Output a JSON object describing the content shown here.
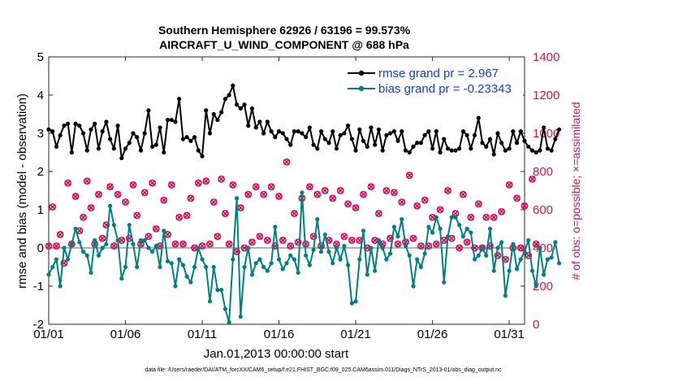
{
  "chart_data": {
    "type": "line",
    "title": "Southern Hemisphere 62926 / 63196 = 99.573%",
    "subtitle": "AIRCRAFT_U_WIND_COMPONENT @ 688 hPa",
    "xlabel": "Jan.01,2013 00:00:00 start",
    "ylabel": "rmse and bias (model - observation)",
    "y2label": "# of obs: o=possible; ×=assimilated",
    "x_ticks": [
      "01/01",
      "01/06",
      "01/11",
      "01/16",
      "01/21",
      "01/26",
      "01/31"
    ],
    "xlim": [
      0,
      124
    ],
    "ylim": [
      -2,
      5
    ],
    "y_ticks": [
      -2,
      -1,
      0,
      1,
      2,
      3,
      4,
      5
    ],
    "y2lim": [
      0,
      1400
    ],
    "y2_ticks": [
      0,
      200,
      400,
      600,
      800,
      1000,
      1200,
      1400
    ],
    "zero_line": true,
    "footnote": "data file: /Users/raeder/DAI/ATM_forcXX/CAM6_setup/f.e21.FHIST_BGC.f09_025.CAM6assim.011/Diags_NTrS_2013-01/obs_diag_output.nc",
    "series": [
      {
        "name": "rmse grand pr = 2.967",
        "color": "#000000",
        "axis": "left",
        "values": [
          3.1,
          3.05,
          2.65,
          2.95,
          3.2,
          3.25,
          2.5,
          3.25,
          3.2,
          3.0,
          2.55,
          3.1,
          3.25,
          2.6,
          3.05,
          3.3,
          2.85,
          2.6,
          3.2,
          2.35,
          2.6,
          2.75,
          3.0,
          2.9,
          2.55,
          3.0,
          3.6,
          2.65,
          2.7,
          3.15,
          2.5,
          3.35,
          3.35,
          3.3,
          3.9,
          2.85,
          2.9,
          2.8,
          2.9,
          2.55,
          2.4,
          3.6,
          3.0,
          3.5,
          3.35,
          3.55,
          3.9,
          4.0,
          4.25,
          3.75,
          3.65,
          3.75,
          3.2,
          3.65,
          3.15,
          3.3,
          3.0,
          3.3,
          3.05,
          2.9,
          3.05,
          3.0,
          2.85,
          2.7,
          3.05,
          3.05,
          3.0,
          2.9,
          3.15,
          2.7,
          2.6,
          3.05,
          2.85,
          2.75,
          3.05,
          2.6,
          2.95,
          3.0,
          3.2,
          2.85,
          2.55,
          3.1,
          2.8,
          2.65,
          3.15,
          2.7,
          3.1,
          2.55,
          2.95,
          3.0,
          3.05,
          2.8,
          3.05,
          2.55,
          2.5,
          2.65,
          2.75,
          2.75,
          2.95,
          3.05,
          2.6,
          3.05,
          2.5,
          2.85,
          2.6,
          2.55,
          2.55,
          2.6,
          3.05,
          2.95,
          2.6,
          2.95,
          3.4,
          2.75,
          2.65,
          2.85,
          2.45,
          3.0,
          2.75,
          2.55,
          2.6,
          3.05,
          2.75,
          3.05,
          2.8,
          2.65,
          2.55,
          2.5,
          2.55,
          3.15,
          2.6,
          2.55,
          2.85,
          3.1
        ]
      },
      {
        "name": "bias grand pr = -0.23343",
        "color": "#008080",
        "axis": "left",
        "values": [
          -0.7,
          -0.5,
          -0.3,
          -1.0,
          0.0,
          -0.3,
          0.1,
          0.5,
          0.15,
          -0.1,
          -0.2,
          -0.65,
          0.2,
          -0.2,
          0.0,
          0.1,
          1.1,
          0.6,
          0.2,
          -0.8,
          -0.5,
          0.6,
          0.1,
          -0.5,
          0.2,
          0.2,
          0.0,
          -0.1,
          0.05,
          -0.5,
          0.45,
          -0.35,
          -0.4,
          -1.0,
          -0.3,
          -0.45,
          -0.75,
          -0.9,
          -0.5,
          0.0,
          -0.3,
          -0.5,
          -1.4,
          -0.5,
          -1.1,
          -1.1,
          -1.6,
          -1.95,
          -0.3,
          1.3,
          -1.8,
          -0.5,
          0.0,
          -0.7,
          -0.4,
          -0.3,
          -0.5,
          -0.6,
          -0.4,
          0.55,
          -0.3,
          -0.55,
          -0.4,
          -0.2,
          -0.3,
          -0.65,
          1.45,
          -0.2,
          -0.45,
          -0.05,
          0.75,
          -0.1,
          0.35,
          -0.1,
          -0.4,
          0.0,
          -0.3,
          0.05,
          -0.45,
          -1.45,
          -1.4,
          -0.3,
          0.45,
          -0.7,
          0.0,
          -0.6,
          0.2,
          0.0,
          -0.3,
          -0.15,
          0.55,
          0.3,
          0.75,
          0.05,
          -0.2,
          -1.0,
          -0.3,
          -0.5,
          -0.15,
          0.55,
          0.4,
          0.8,
          0.5,
          -0.9,
          0.3,
          0.8,
          0.8,
          0.6,
          0.3,
          0.5,
          0.4,
          -0.3,
          -0.2,
          0.0,
          -0.2,
          0.5,
          -0.6,
          0.0,
          0.15,
          -1.25,
          -0.6,
          0.1,
          -0.55,
          -0.3,
          -0.1,
          0.2,
          -0.6,
          -1.0,
          0.0,
          -0.7,
          -0.3,
          -0.25,
          0.15,
          -0.4
        ]
      },
      {
        "name": "# of obs possible",
        "color": "#d0105a",
        "axis": "right",
        "marker": "o",
        "values": [
          410,
          615,
          410,
          470,
          320,
          740,
          420,
          670,
          490,
          560,
          750,
          610,
          420,
          680,
          450,
          520,
          720,
          410,
          680,
          440,
          640,
          450,
          730,
          570,
          420,
          690,
          460,
          740,
          500,
          410,
          650,
          470,
          730,
          420,
          560,
          420,
          570,
          660,
          400,
          740,
          410,
          750,
          420,
          640,
          460,
          760,
          580,
          420,
          730,
          380,
          610,
          400,
          680,
          430,
          720,
          460,
          680,
          440,
          720,
          410,
          670,
          440,
          850,
          410,
          580,
          430,
          660,
          420,
          720,
          460,
          680,
          410,
          700,
          440,
          660,
          420,
          700,
          460,
          630,
          440,
          610,
          440,
          680,
          400,
          720,
          440,
          580,
          420,
          700,
          450,
          690,
          420,
          640,
          430,
          780,
          450,
          620,
          410,
          650,
          410,
          560,
          420,
          600,
          440,
          700,
          450,
          580,
          400,
          680,
          430,
          560,
          400,
          630,
          400,
          560,
          410,
          560,
          360,
          590,
          340,
          730,
          400,
          660,
          400,
          620,
          360,
          760,
          420
        ]
      },
      {
        "name": "# of obs assimilated",
        "color": "#d0105a",
        "axis": "right",
        "marker": "x",
        "values": [
          410,
          615,
          410,
          470,
          320,
          740,
          420,
          670,
          490,
          560,
          750,
          610,
          420,
          680,
          450,
          520,
          720,
          410,
          680,
          440,
          640,
          450,
          730,
          570,
          420,
          690,
          460,
          740,
          500,
          410,
          650,
          470,
          730,
          420,
          560,
          420,
          570,
          660,
          400,
          740,
          410,
          750,
          420,
          640,
          460,
          760,
          580,
          420,
          730,
          380,
          610,
          400,
          680,
          430,
          720,
          460,
          680,
          440,
          720,
          410,
          670,
          440,
          850,
          410,
          580,
          430,
          660,
          420,
          720,
          460,
          680,
          410,
          700,
          440,
          660,
          420,
          700,
          460,
          630,
          440,
          610,
          440,
          680,
          400,
          720,
          440,
          580,
          420,
          700,
          450,
          690,
          420,
          640,
          430,
          780,
          450,
          620,
          410,
          650,
          410,
          560,
          420,
          600,
          440,
          700,
          450,
          580,
          400,
          680,
          430,
          560,
          400,
          630,
          400,
          560,
          410,
          560,
          360,
          590,
          340,
          730,
          400,
          660,
          400,
          620,
          360,
          760,
          420
        ]
      }
    ]
  }
}
